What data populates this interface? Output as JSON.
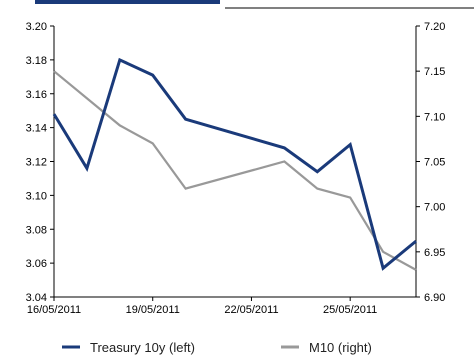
{
  "chart_data": {
    "type": "line",
    "x": [
      "16/05/2011",
      "17/05/2011",
      "18/05/2011",
      "19/05/2011",
      "20/05/2011",
      "23/05/2011",
      "24/05/2011",
      "25/05/2011",
      "26/05/2011",
      "27/05/2011"
    ],
    "x_tick_labels": [
      "16/05/2011",
      "19/05/2011",
      "22/05/2011",
      "25/05/2011"
    ],
    "y_left": {
      "ticks": [
        "3.04",
        "3.06",
        "3.08",
        "3.10",
        "3.12",
        "3.14",
        "3.16",
        "3.18",
        "3.20"
      ],
      "ylim": [
        3.04,
        3.2
      ]
    },
    "y_right": {
      "ticks": [
        "6.90",
        "6.95",
        "7.00",
        "7.05",
        "7.10",
        "7.15",
        "7.20"
      ],
      "ylim": [
        6.9,
        7.2
      ]
    },
    "series": [
      {
        "name": "Treasury 10y (left)",
        "axis": "left",
        "color": "#1a3a7a",
        "points": [
          {
            "x": "16/05/2011",
            "y": 3.148
          },
          {
            "x": "17/05/2011",
            "y": 3.116
          },
          {
            "x": "18/05/2011",
            "y": 3.18
          },
          {
            "x": "19/05/2011",
            "y": 3.171
          },
          {
            "x": "20/05/2011",
            "y": 3.145
          },
          {
            "x": "23/05/2011",
            "y": 3.128
          },
          {
            "x": "24/05/2011",
            "y": 3.114
          },
          {
            "x": "25/05/2011",
            "y": 3.13
          },
          {
            "x": "26/05/2011",
            "y": 3.057
          },
          {
            "x": "27/05/2011",
            "y": 3.073
          }
        ]
      },
      {
        "name": "M10 (right)",
        "axis": "right",
        "color": "#999999",
        "points": [
          {
            "x": "16/05/2011",
            "y": 7.15
          },
          {
            "x": "18/05/2011",
            "y": 7.09
          },
          {
            "x": "19/05/2011",
            "y": 7.07
          },
          {
            "x": "20/05/2011",
            "y": 7.02
          },
          {
            "x": "23/05/2011",
            "y": 7.05
          },
          {
            "x": "24/05/2011",
            "y": 7.02
          },
          {
            "x": "25/05/2011",
            "y": 7.01
          },
          {
            "x": "26/05/2011",
            "y": 6.95
          },
          {
            "x": "27/05/2011",
            "y": 6.93
          }
        ]
      }
    ],
    "legend": {
      "placement": "bottom",
      "items": [
        {
          "label": "Treasury 10y (left)",
          "color": "#1a3a7a"
        },
        {
          "label": "M10 (right)",
          "color": "#999999"
        }
      ]
    },
    "grid": false
  }
}
